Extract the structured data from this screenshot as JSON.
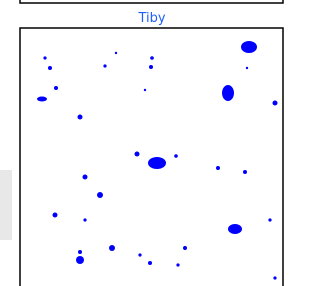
{
  "panel": {
    "label": "Tiby"
  }
}
